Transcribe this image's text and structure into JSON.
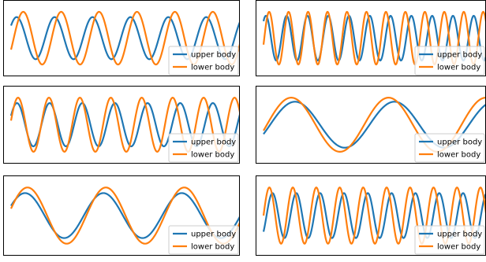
{
  "chart_data": [
    {
      "type": "line",
      "xlim": [
        0,
        6.2
      ],
      "ylim": [
        -1.12,
        1.12
      ],
      "grid": false,
      "legend_placement": "lower-right",
      "series": [
        {
          "name": "upper body",
          "color": "#1f77b4",
          "amplitude": 0.8,
          "frequency": 6.2,
          "phase": 0.64
        },
        {
          "name": "lower body",
          "color": "#ff7f0e",
          "amplitude": 1.0,
          "frequency": 6.2,
          "phase": -0.45
        }
      ]
    },
    {
      "type": "line",
      "xlim": [
        0,
        6.2
      ],
      "ylim": [
        -1.12,
        1.12
      ],
      "grid": false,
      "legend_placement": "lower-right",
      "series": [
        {
          "name": "upper body",
          "color": "#1f77b4",
          "amplitude": 0.85,
          "frequency": 11.0,
          "phase": 0.86
        },
        {
          "name": "lower body",
          "color": "#ff7f0e",
          "amplitude": 1.0,
          "frequency": 11.75,
          "phase": -0.25
        }
      ]
    },
    {
      "type": "line",
      "xlim": [
        0,
        6.2
      ],
      "ylim": [
        -1.12,
        1.12
      ],
      "grid": false,
      "legend_placement": "lower-right",
      "series": [
        {
          "name": "upper body",
          "color": "#1f77b4",
          "amplitude": 0.8,
          "frequency": 7.2,
          "phase": 0.43
        },
        {
          "name": "lower body",
          "color": "#ff7f0e",
          "amplitude": 1.0,
          "frequency": 7.6,
          "phase": 0.15
        }
      ]
    },
    {
      "type": "line",
      "xlim": [
        0,
        6.2
      ],
      "ylim": [
        -1.12,
        1.12
      ],
      "grid": false,
      "legend_placement": "lower-right",
      "series": [
        {
          "name": "upper body",
          "color": "#1f77b4",
          "amplitude": 0.85,
          "frequency": 2.3,
          "phase": -0.42
        },
        {
          "name": "lower body",
          "color": "#ff7f0e",
          "amplitude": 1.0,
          "frequency": 2.35,
          "phase": -0.22
        }
      ]
    },
    {
      "type": "line",
      "xlim": [
        0,
        6.2
      ],
      "ylim": [
        -1.12,
        1.12
      ],
      "grid": false,
      "legend_placement": "lower-right",
      "series": [
        {
          "name": "upper body",
          "color": "#1f77b4",
          "amplitude": 0.8,
          "frequency": 3.0,
          "phase": 0.45
        },
        {
          "name": "lower body",
          "color": "#ff7f0e",
          "amplitude": 1.0,
          "frequency": 3.0,
          "phase": 0.25
        }
      ]
    },
    {
      "type": "line",
      "xlim": [
        0,
        6.2
      ],
      "ylim": [
        -1.12,
        1.12
      ],
      "grid": false,
      "legend_placement": "lower-right",
      "series": [
        {
          "name": "upper body",
          "color": "#1f77b4",
          "amplitude": 0.8,
          "frequency": 9.6,
          "phase": -0.8
        },
        {
          "name": "lower body",
          "color": "#ff7f0e",
          "amplitude": 1.0,
          "frequency": 9.75,
          "phase": 0.0
        }
      ]
    }
  ]
}
